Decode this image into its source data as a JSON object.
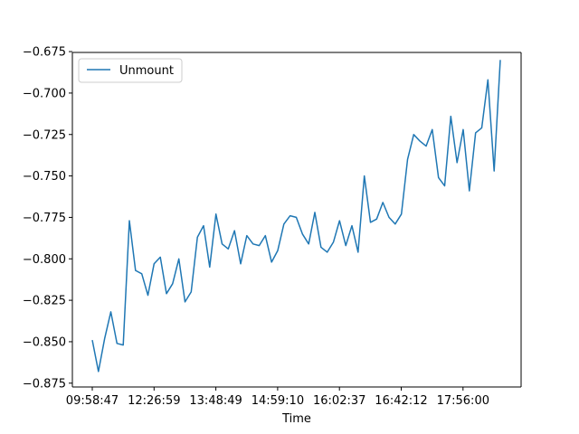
{
  "chart_data": {
    "type": "line",
    "xlabel": "Time",
    "ylabel": "",
    "grid": false,
    "legend_position": "top-left",
    "x_tick_labels": [
      "09:58:47",
      "12:26:59",
      "13:48:49",
      "14:59:10",
      "16:02:37",
      "16:42:12",
      "17:56:00"
    ],
    "y_ticks": [
      -0.675,
      -0.7,
      -0.725,
      -0.75,
      -0.775,
      -0.8,
      -0.825,
      -0.85,
      -0.875
    ],
    "y_tick_labels": [
      "−0.675",
      "−0.700",
      "−0.725",
      "−0.750",
      "−0.775",
      "−0.800",
      "−0.825",
      "−0.850",
      "−0.875"
    ],
    "ylim": [
      -0.8773,
      -0.6755
    ],
    "series": [
      {
        "name": "Unmount",
        "color": "#1f77b4",
        "values": [
          -0.849,
          -0.868,
          -0.848,
          -0.832,
          -0.851,
          -0.852,
          -0.777,
          -0.807,
          -0.809,
          -0.822,
          -0.803,
          -0.799,
          -0.821,
          -0.815,
          -0.8,
          -0.826,
          -0.82,
          -0.787,
          -0.78,
          -0.805,
          -0.773,
          -0.791,
          -0.794,
          -0.783,
          -0.803,
          -0.786,
          -0.791,
          -0.792,
          -0.786,
          -0.802,
          -0.795,
          -0.779,
          -0.774,
          -0.775,
          -0.785,
          -0.791,
          -0.772,
          -0.793,
          -0.796,
          -0.79,
          -0.777,
          -0.792,
          -0.78,
          -0.796,
          -0.75,
          -0.778,
          -0.776,
          -0.766,
          -0.775,
          -0.779,
          -0.773,
          -0.74,
          -0.725,
          -0.729,
          -0.732,
          -0.722,
          -0.751,
          -0.756,
          -0.714,
          -0.742,
          -0.722,
          -0.759,
          -0.724,
          -0.721,
          -0.692,
          -0.747,
          -0.68
        ]
      }
    ]
  }
}
